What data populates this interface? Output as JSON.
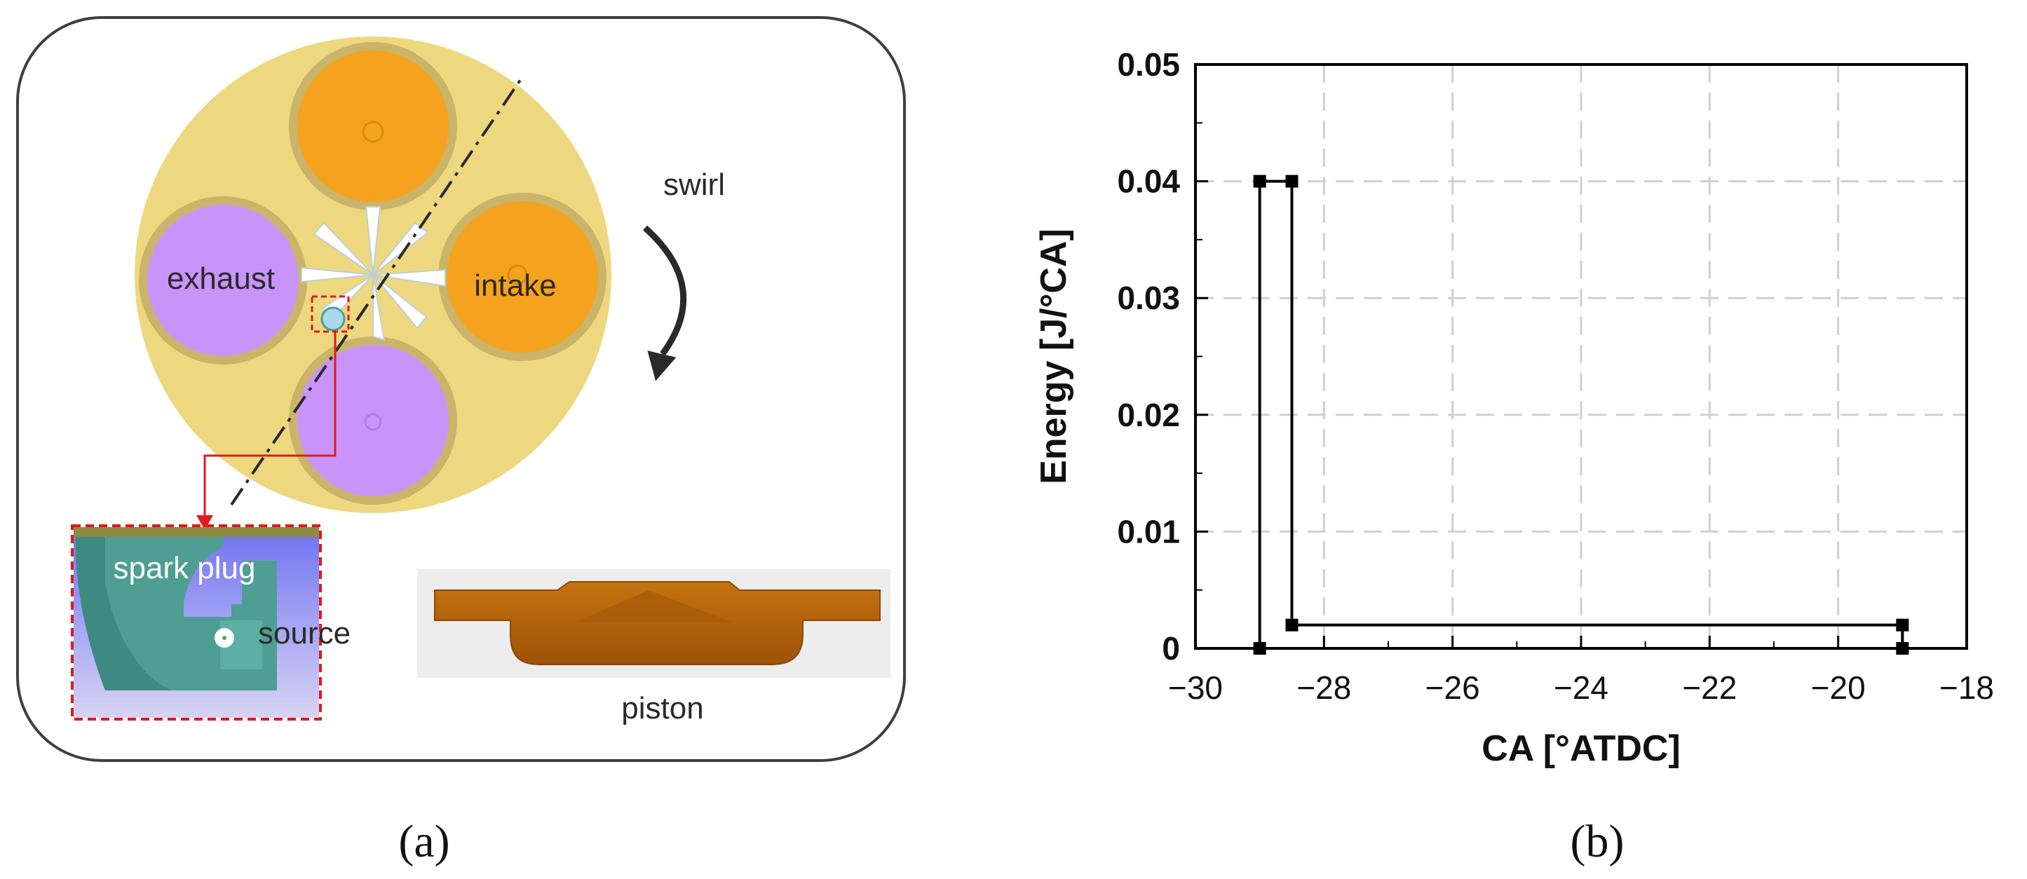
{
  "diagram": {
    "labels": {
      "exhaust": "exhaust",
      "intake": "intake",
      "swirl": "swirl",
      "spark_plug": "spark plug",
      "source": "source",
      "piston": "piston"
    },
    "caption": "(a)",
    "colors": {
      "intake_valve": "#F5A21F",
      "exhaust_valve": "#C994FA",
      "head": "#EDD880",
      "panel_border": "#3F3F3F",
      "callout": "#E01A1A",
      "spray": "#FFFFFF",
      "spark_plug": "#4E9E94",
      "piston": "#B8630E"
    },
    "icons": [
      "swirl-arrow-icon",
      "spark-plug-icon"
    ]
  },
  "chart_data": {
    "type": "line",
    "caption": "(b)",
    "xlabel": "CA [°ATDC]",
    "ylabel": "Energy [J/°CA]",
    "xlim": [
      -30,
      -18
    ],
    "ylim": [
      0,
      0.05
    ],
    "x_ticks": [
      -30,
      -28,
      -26,
      -24,
      -22,
      -20,
      -18
    ],
    "x_tick_labels": [
      "−30",
      "−28",
      "−26",
      "−24",
      "−22",
      "−20",
      "−18"
    ],
    "y_ticks": [
      0,
      0.01,
      0.02,
      0.03,
      0.04,
      0.05
    ],
    "y_tick_labels": [
      "0",
      "0.01",
      "0.02",
      "0.03",
      "0.04",
      "0.05"
    ],
    "grid": true,
    "series": [
      {
        "x": [
          -29,
          -29,
          -28.5,
          -28.5,
          -19,
          -19
        ],
        "y": [
          0,
          0.04,
          0.04,
          0.002,
          0.002,
          0
        ],
        "color": "#000000",
        "marker": "square"
      }
    ]
  }
}
